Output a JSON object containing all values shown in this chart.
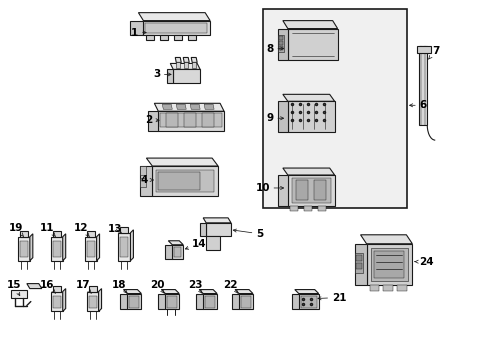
{
  "bg": "#ffffff",
  "lc": "#1a1a1a",
  "fc": "#f5f5f5",
  "fc2": "#e0e0e0",
  "fc3": "#cccccc",
  "figsize": [
    4.89,
    3.6
  ],
  "dpi": 100
}
